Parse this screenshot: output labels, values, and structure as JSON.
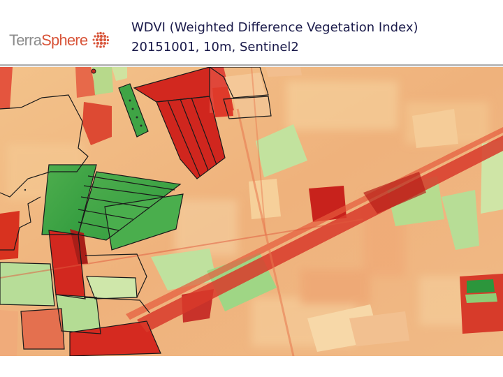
{
  "brand": {
    "name_part1": "Terra",
    "name_part2": "Sphere",
    "icon": "terrasphere-dot-globe-icon",
    "colors": {
      "grey": "#8c8c8c",
      "accent": "#d8553a"
    }
  },
  "title": {
    "line1": "WDVI (Weighted Difference Vegetation Index)",
    "line2": "20151001, 10m, Sentinel2"
  },
  "map": {
    "colors": {
      "base": "#f0b27a",
      "high_vegetation": "#2e9a3e",
      "mid_vegetation": "#9fd67e",
      "low_vegetation": "#d42a20",
      "field_outline": "#1a1a1a"
    }
  }
}
